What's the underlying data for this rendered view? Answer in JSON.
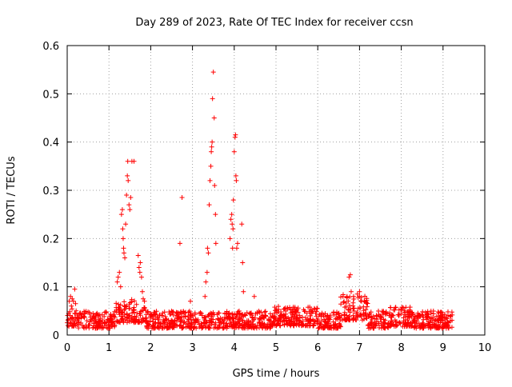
{
  "chart_data": {
    "type": "scatter",
    "title": "Day 289 of 2023, Rate Of TEC Index for receiver ccsn",
    "xlabel": "GPS time / hours",
    "ylabel": "ROTI / TECUs",
    "xlim": [
      0,
      10
    ],
    "ylim": [
      0,
      0.6
    ],
    "x_ticks": [
      "0",
      "1",
      "2",
      "3",
      "4",
      "5",
      "6",
      "7",
      "8",
      "9",
      "10"
    ],
    "y_ticks": [
      "0",
      "0.1",
      "0.2",
      "0.3",
      "0.4",
      "0.5",
      "0.6"
    ],
    "grid": true,
    "marker": "+",
    "color": "#ff0000",
    "series": [
      {
        "name": "ROTI",
        "points": [
          [
            0.05,
            0.07
          ],
          [
            0.08,
            0.08
          ],
          [
            0.1,
            0.06
          ],
          [
            0.12,
            0.075
          ],
          [
            0.15,
            0.07
          ],
          [
            0.18,
            0.095
          ],
          [
            0.2,
            0.065
          ],
          [
            1.2,
            0.11
          ],
          [
            1.22,
            0.12
          ],
          [
            1.25,
            0.13
          ],
          [
            1.28,
            0.1
          ],
          [
            1.3,
            0.25
          ],
          [
            1.32,
            0.26
          ],
          [
            1.33,
            0.22
          ],
          [
            1.34,
            0.2
          ],
          [
            1.35,
            0.18
          ],
          [
            1.36,
            0.17
          ],
          [
            1.38,
            0.16
          ],
          [
            1.4,
            0.23
          ],
          [
            1.42,
            0.29
          ],
          [
            1.44,
            0.33
          ],
          [
            1.45,
            0.36
          ],
          [
            1.46,
            0.32
          ],
          [
            1.48,
            0.27
          ],
          [
            1.5,
            0.26
          ],
          [
            1.52,
            0.285
          ],
          [
            1.55,
            0.36
          ],
          [
            1.6,
            0.36
          ],
          [
            1.7,
            0.165
          ],
          [
            1.72,
            0.14
          ],
          [
            1.74,
            0.13
          ],
          [
            1.75,
            0.15
          ],
          [
            1.78,
            0.12
          ],
          [
            1.8,
            0.09
          ],
          [
            1.82,
            0.075
          ],
          [
            1.85,
            0.07
          ],
          [
            2.7,
            0.19
          ],
          [
            2.75,
            0.285
          ],
          [
            2.95,
            0.07
          ],
          [
            3.3,
            0.08
          ],
          [
            3.32,
            0.11
          ],
          [
            3.35,
            0.13
          ],
          [
            3.36,
            0.18
          ],
          [
            3.38,
            0.17
          ],
          [
            3.4,
            0.27
          ],
          [
            3.42,
            0.32
          ],
          [
            3.44,
            0.35
          ],
          [
            3.45,
            0.38
          ],
          [
            3.46,
            0.39
          ],
          [
            3.47,
            0.4
          ],
          [
            3.48,
            0.49
          ],
          [
            3.5,
            0.545
          ],
          [
            3.52,
            0.45
          ],
          [
            3.53,
            0.31
          ],
          [
            3.55,
            0.25
          ],
          [
            3.56,
            0.19
          ],
          [
            3.9,
            0.2
          ],
          [
            3.92,
            0.24
          ],
          [
            3.94,
            0.25
          ],
          [
            3.95,
            0.23
          ],
          [
            3.96,
            0.18
          ],
          [
            3.97,
            0.22
          ],
          [
            3.98,
            0.28
          ],
          [
            4.0,
            0.38
          ],
          [
            4.02,
            0.41
          ],
          [
            4.03,
            0.415
          ],
          [
            4.04,
            0.33
          ],
          [
            4.05,
            0.32
          ],
          [
            4.06,
            0.18
          ],
          [
            4.08,
            0.19
          ],
          [
            4.18,
            0.23
          ],
          [
            4.2,
            0.15
          ],
          [
            4.22,
            0.09
          ],
          [
            4.48,
            0.08
          ],
          [
            6.7,
            0.08
          ],
          [
            6.75,
            0.12
          ],
          [
            6.78,
            0.125
          ],
          [
            6.8,
            0.09
          ],
          [
            6.95,
            0.085
          ],
          [
            7.0,
            0.09
          ],
          [
            7.05,
            0.07
          ]
        ]
      }
    ]
  }
}
